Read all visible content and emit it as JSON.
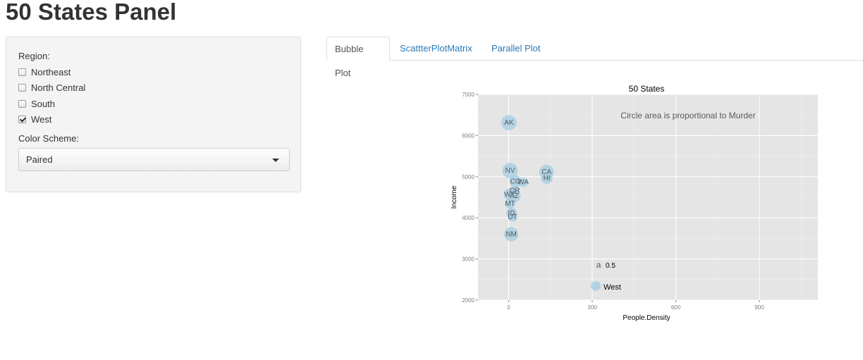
{
  "app": {
    "title": "50 States Panel"
  },
  "sidebar": {
    "region_label": "Region:",
    "regions": [
      {
        "label": "Northeast",
        "checked": false
      },
      {
        "label": "North Central",
        "checked": false
      },
      {
        "label": "South",
        "checked": false
      },
      {
        "label": "West",
        "checked": true
      }
    ],
    "color_scheme_label": "Color Scheme:",
    "color_scheme_value": "Paired"
  },
  "tabs": [
    {
      "label": "Bubble Plot",
      "active": true
    },
    {
      "label": "ScattterPlotMatrix",
      "active": false
    },
    {
      "label": "Parallel Plot",
      "active": false
    }
  ],
  "chart_data": {
    "type": "scatter",
    "title": "50 States",
    "annotation": "Circle area is proportional to Murder",
    "xlabel": "People.Density",
    "ylabel": "Income",
    "xlim": [
      -110,
      1110
    ],
    "ylim": [
      2000,
      7000
    ],
    "xticks": [
      0,
      300,
      600,
      900
    ],
    "yticks": [
      2000,
      3000,
      4000,
      5000,
      6000,
      7000
    ],
    "grid": true,
    "point_color": "#a6cee3",
    "panel_color": "#e5e5e5",
    "points": [
      {
        "label": "AK",
        "x": 1,
        "y": 6315,
        "murder": 11.3
      },
      {
        "label": "NV",
        "x": 5,
        "y": 5149,
        "murder": 11.5
      },
      {
        "label": "CA",
        "x": 136,
        "y": 5114,
        "murder": 10.3
      },
      {
        "label": "HI",
        "x": 137,
        "y": 4963,
        "murder": 6.2
      },
      {
        "label": "CO",
        "x": 24,
        "y": 4884,
        "murder": 6.8
      },
      {
        "label": "WA",
        "x": 52,
        "y": 4864,
        "murder": 4.3
      },
      {
        "label": "OR",
        "x": 22,
        "y": 4660,
        "murder": 4.2
      },
      {
        "label": "WY",
        "x": 4,
        "y": 4566,
        "murder": 6.9
      },
      {
        "label": "AZ",
        "x": 20,
        "y": 4530,
        "murder": 7.8
      },
      {
        "label": "MT",
        "x": 5,
        "y": 4347,
        "murder": 5.0
      },
      {
        "label": "ID",
        "x": 10,
        "y": 4119,
        "murder": 5.3
      },
      {
        "label": "UT",
        "x": 14,
        "y": 4022,
        "murder": 4.5
      },
      {
        "label": "NM",
        "x": 9,
        "y": 3601,
        "murder": 9.7
      }
    ],
    "legend": {
      "placement": "bottom-center",
      "size_key_symbol": "a",
      "size_key_label": "0.5",
      "color_key_label": "West"
    }
  }
}
